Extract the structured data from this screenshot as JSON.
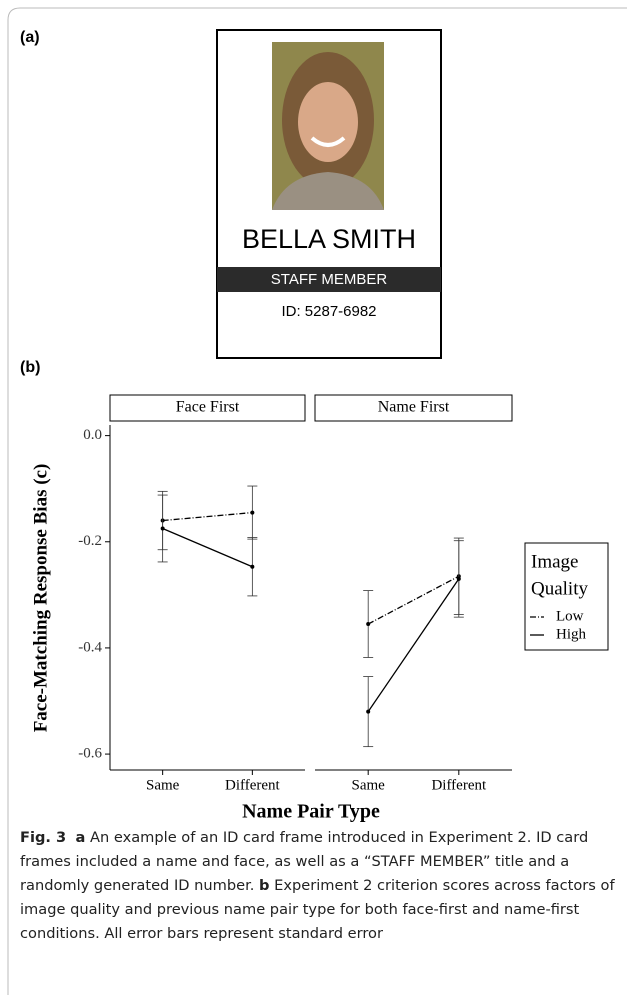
{
  "panel_a_label": "(a)",
  "panel_b_label": "(b)",
  "id_card": {
    "name": "BELLA SMITH",
    "role": "STAFF MEMBER",
    "id": "ID: 5287-6982"
  },
  "chart_data": {
    "type": "line",
    "y_label": "Face-Matching Response Bias (c)",
    "x_label": "Name Pair Type",
    "facets": [
      "Face First",
      "Name First"
    ],
    "categories": [
      "Same",
      "Different"
    ],
    "ylim": [
      -0.63,
      0.02
    ],
    "yticks": [
      {
        "value": 0,
        "label": "0.0"
      },
      -0.2,
      -0.4,
      -0.6
    ],
    "legend_title": [
      "Image",
      "Quality"
    ],
    "series": [
      {
        "name": "Low",
        "color": "#000000",
        "dash": "6 2 1 2",
        "values": [
          [
            -0.16,
            -0.145
          ],
          [
            -0.355,
            -0.265
          ]
        ],
        "errors": [
          [
            0.055,
            0.05
          ],
          [
            0.063,
            0.072
          ]
        ]
      },
      {
        "name": "High",
        "color": "#000000",
        "dash": "none",
        "values": [
          [
            -0.175,
            -0.247
          ],
          [
            -0.52,
            -0.27
          ]
        ],
        "errors": [
          [
            0.063,
            0.055
          ],
          [
            0.066,
            0.072
          ]
        ]
      }
    ]
  },
  "caption": {
    "fig": "Fig. 3",
    "a": "a",
    "a_text": "An example of an ID card frame introduced in Experiment 2. ID card frames included a name and face, as well as a “STAFF MEMBER” title and a randomly generated ID number.",
    "b": "b",
    "b_text": "Experiment 2 criterion scores across factors of image quality and previous name pair type for both face-first and name-first conditions. All error bars represent standard error"
  }
}
